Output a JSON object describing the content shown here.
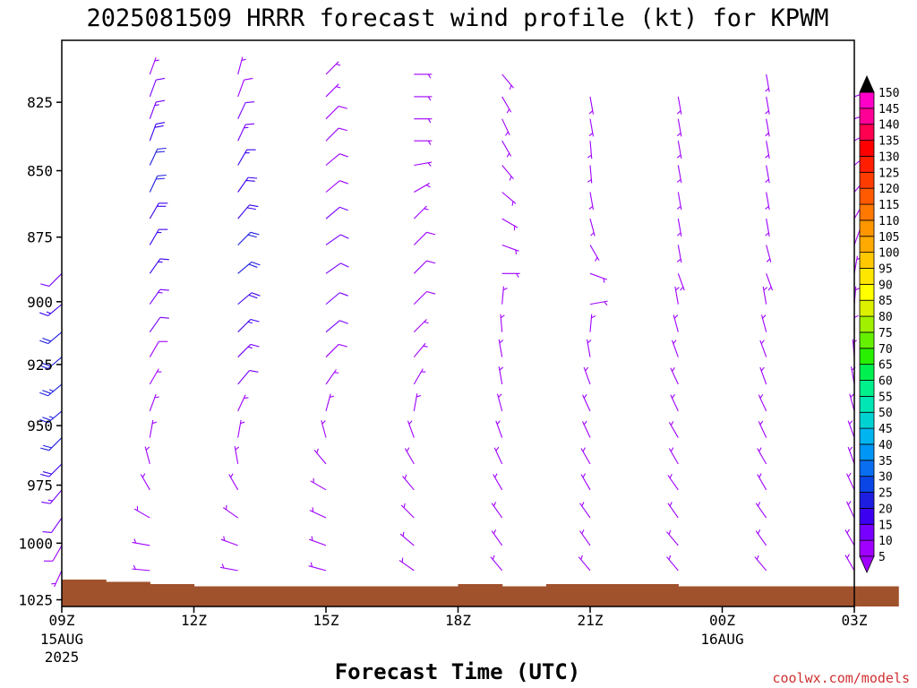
{
  "title": "2025081509 HRRR forecast wind profile (kt) for KPWM",
  "credit": "coolwx.com/models",
  "chart_data": {
    "type": "wind_profile",
    "title": "2025081509 HRRR forecast wind profile (kt) for KPWM",
    "xlabel": "Forecast Time (UTC)",
    "ylabel": "",
    "x_range_hours": [
      0,
      18
    ],
    "y_range": [
      1028,
      803
    ],
    "y_scale": "log-pressure (hPa)",
    "x_ticks": [
      {
        "hour": 0,
        "label": "09Z",
        "sub": [
          "15AUG",
          "2025"
        ]
      },
      {
        "hour": 3,
        "label": "12Z",
        "sub": []
      },
      {
        "hour": 6,
        "label": "15Z",
        "sub": []
      },
      {
        "hour": 9,
        "label": "18Z",
        "sub": []
      },
      {
        "hour": 12,
        "label": "21Z",
        "sub": []
      },
      {
        "hour": 15,
        "label": "00Z",
        "sub": [
          "16AUG"
        ]
      },
      {
        "hour": 18,
        "label": "03Z",
        "sub": []
      }
    ],
    "y_ticks": [
      825,
      850,
      875,
      900,
      925,
      950,
      975,
      1000,
      1025
    ],
    "barb_levels_hpa": [
      808,
      815,
      823,
      831,
      839,
      848,
      858,
      868,
      878,
      889,
      901,
      912,
      922,
      933,
      944,
      955,
      966,
      977,
      989,
      1001,
      1012,
      1022
    ],
    "surface_pressure_hpa": [
      1016,
      1017,
      1018,
      1019,
      1019,
      1019,
      1019,
      1019,
      1019,
      1018,
      1019,
      1018,
      1018,
      1018,
      1019,
      1019,
      1019,
      1019,
      1019
    ],
    "wind_series": [
      {
        "hour": 0,
        "surface": 1016,
        "barbs": [
          [
            200,
            2
          ],
          [
            205,
            4
          ],
          [
            210,
            9
          ],
          [
            215,
            12
          ],
          [
            220,
            14
          ],
          [
            225,
            18
          ],
          [
            225,
            22
          ],
          [
            230,
            24
          ],
          [
            230,
            24
          ],
          [
            230,
            22
          ],
          [
            230,
            20
          ],
          [
            230,
            16
          ],
          [
            225,
            12
          ]
        ]
      },
      {
        "hour": 2,
        "surface": 1017,
        "barbs": [
          [
            270,
            8
          ],
          [
            275,
            7
          ],
          [
            280,
            6
          ],
          [
            300,
            6
          ],
          [
            330,
            4
          ],
          [
            345,
            4
          ],
          [
            10,
            4
          ],
          [
            20,
            4
          ],
          [
            30,
            7
          ],
          [
            30,
            9
          ],
          [
            35,
            12
          ],
          [
            35,
            14
          ],
          [
            35,
            15
          ],
          [
            30,
            17
          ],
          [
            30,
            19
          ],
          [
            25,
            22
          ],
          [
            25,
            22
          ],
          [
            20,
            18
          ],
          [
            20,
            14
          ],
          [
            20,
            10
          ],
          [
            20,
            5
          ]
        ]
      },
      {
        "hour": 4,
        "surface": 1019,
        "barbs": [
          [
            275,
            4
          ],
          [
            280,
            4
          ],
          [
            290,
            4
          ],
          [
            305,
            4
          ],
          [
            330,
            4
          ],
          [
            350,
            5
          ],
          [
            10,
            5
          ],
          [
            25,
            7
          ],
          [
            40,
            10
          ],
          [
            45,
            13
          ],
          [
            45,
            16
          ],
          [
            50,
            18
          ],
          [
            50,
            20
          ],
          [
            45,
            20
          ],
          [
            40,
            19
          ],
          [
            35,
            18
          ],
          [
            30,
            16
          ],
          [
            25,
            14
          ],
          [
            25,
            12
          ],
          [
            20,
            9
          ],
          [
            15,
            5
          ]
        ]
      },
      {
        "hour": 6,
        "surface": 1019,
        "barbs": [
          [
            270,
            5
          ],
          [
            285,
            5
          ],
          [
            290,
            5
          ],
          [
            295,
            5
          ],
          [
            300,
            5
          ],
          [
            320,
            5
          ],
          [
            345,
            5
          ],
          [
            15,
            6
          ],
          [
            35,
            7
          ],
          [
            45,
            8
          ],
          [
            50,
            10
          ],
          [
            50,
            11
          ],
          [
            55,
            12
          ],
          [
            55,
            11
          ],
          [
            50,
            10
          ],
          [
            50,
            9
          ],
          [
            50,
            9
          ],
          [
            45,
            8
          ],
          [
            45,
            8
          ],
          [
            45,
            7
          ],
          [
            45,
            5
          ]
        ]
      },
      {
        "hour": 8,
        "surface": 1019,
        "barbs": [
          [
            300,
            3
          ],
          [
            305,
            4
          ],
          [
            310,
            5
          ],
          [
            315,
            5
          ],
          [
            320,
            5
          ],
          [
            330,
            5
          ],
          [
            340,
            5
          ],
          [
            10,
            5
          ],
          [
            30,
            6
          ],
          [
            40,
            7
          ],
          [
            45,
            7
          ],
          [
            45,
            8
          ],
          [
            45,
            8
          ],
          [
            45,
            8
          ],
          [
            45,
            7
          ],
          [
            60,
            6
          ],
          [
            80,
            5
          ],
          [
            90,
            5
          ],
          [
            90,
            5
          ],
          [
            90,
            5
          ],
          [
            90,
            4
          ]
        ]
      },
      {
        "hour": 10,
        "surface": 1019,
        "barbs": [
          [
            320,
            4
          ],
          [
            320,
            5
          ],
          [
            325,
            6
          ],
          [
            325,
            7
          ],
          [
            330,
            7
          ],
          [
            335,
            7
          ],
          [
            340,
            7
          ],
          [
            345,
            7
          ],
          [
            350,
            7
          ],
          [
            350,
            6
          ],
          [
            355,
            5
          ],
          [
            5,
            4
          ],
          [
            90,
            3
          ],
          [
            110,
            3
          ],
          [
            120,
            4
          ],
          [
            130,
            4
          ],
          [
            140,
            4
          ],
          [
            150,
            5
          ],
          [
            155,
            5
          ],
          [
            150,
            5
          ],
          [
            140,
            4
          ]
        ]
      },
      {
        "hour": 12,
        "surface": 1018,
        "barbs": [
          [
            320,
            4
          ],
          [
            320,
            5
          ],
          [
            325,
            6
          ],
          [
            325,
            7
          ],
          [
            330,
            7
          ],
          [
            330,
            7
          ],
          [
            335,
            7
          ],
          [
            335,
            7
          ],
          [
            340,
            7
          ],
          [
            350,
            6
          ],
          [
            5,
            5
          ],
          [
            80,
            4
          ],
          [
            110,
            3
          ],
          [
            150,
            3
          ],
          [
            165,
            3
          ],
          [
            170,
            4
          ],
          [
            175,
            4
          ],
          [
            175,
            4
          ],
          [
            170,
            4
          ],
          [
            170,
            4
          ]
        ]
      },
      {
        "hour": 14,
        "surface": 1018,
        "barbs": [
          [
            320,
            4
          ],
          [
            320,
            5
          ],
          [
            320,
            6
          ],
          [
            325,
            7
          ],
          [
            325,
            7
          ],
          [
            330,
            7
          ],
          [
            330,
            7
          ],
          [
            335,
            7
          ],
          [
            335,
            7
          ],
          [
            340,
            6
          ],
          [
            345,
            5
          ],
          [
            350,
            4
          ],
          [
            160,
            3
          ],
          [
            170,
            3
          ],
          [
            170,
            4
          ],
          [
            170,
            4
          ],
          [
            170,
            4
          ],
          [
            170,
            4
          ],
          [
            170,
            4
          ],
          [
            170,
            4
          ]
        ]
      },
      {
        "hour": 16,
        "surface": 1019,
        "barbs": [
          [
            320,
            4
          ],
          [
            320,
            5
          ],
          [
            325,
            6
          ],
          [
            325,
            6
          ],
          [
            330,
            6
          ],
          [
            330,
            6
          ],
          [
            335,
            6
          ],
          [
            335,
            6
          ],
          [
            340,
            6
          ],
          [
            340,
            6
          ],
          [
            345,
            5
          ],
          [
            350,
            4
          ],
          [
            160,
            3
          ],
          [
            165,
            3
          ],
          [
            170,
            3
          ],
          [
            170,
            3
          ],
          [
            170,
            3
          ],
          [
            170,
            3
          ],
          [
            170,
            3
          ],
          [
            170,
            3
          ],
          [
            170,
            3
          ]
        ]
      },
      {
        "hour": 18,
        "surface": 1019,
        "barbs": [
          [
            330,
            4
          ],
          [
            330,
            4
          ],
          [
            330,
            4
          ],
          [
            335,
            4
          ],
          [
            335,
            4
          ],
          [
            340,
            4
          ],
          [
            340,
            4
          ],
          [
            345,
            4
          ],
          [
            350,
            4
          ],
          [
            355,
            4
          ],
          [
            0,
            4
          ],
          [
            5,
            4
          ],
          [
            10,
            4
          ],
          [
            20,
            4
          ],
          [
            30,
            4
          ],
          [
            40,
            4
          ],
          [
            50,
            4
          ],
          [
            60,
            4
          ],
          [
            70,
            4
          ],
          [
            70,
            4
          ]
        ]
      }
    ],
    "colorbar": {
      "labels": [
        5,
        10,
        15,
        20,
        25,
        30,
        35,
        40,
        45,
        50,
        55,
        60,
        65,
        70,
        75,
        80,
        85,
        90,
        95,
        100,
        105,
        110,
        115,
        120,
        125,
        130,
        135,
        140,
        145,
        150
      ],
      "colors": [
        "#a000ff",
        "#7800ff",
        "#3c00f0",
        "#1e1ee0",
        "#0a46e6",
        "#0a6ef0",
        "#0096f5",
        "#00b4f0",
        "#00d2d2",
        "#00e6b4",
        "#00f08c",
        "#00f050",
        "#28f000",
        "#64f000",
        "#a0f000",
        "#dcf000",
        "#ffff00",
        "#ffe600",
        "#ffc800",
        "#ffaa00",
        "#ff9600",
        "#ff7800",
        "#ff5a00",
        "#ff3c00",
        "#ff1e00",
        "#ff0000",
        "#ff0050",
        "#ff0096",
        "#ff00c8",
        "#ff00ff"
      ],
      "under_color": "#a000ff",
      "over_color": "#000000"
    }
  }
}
